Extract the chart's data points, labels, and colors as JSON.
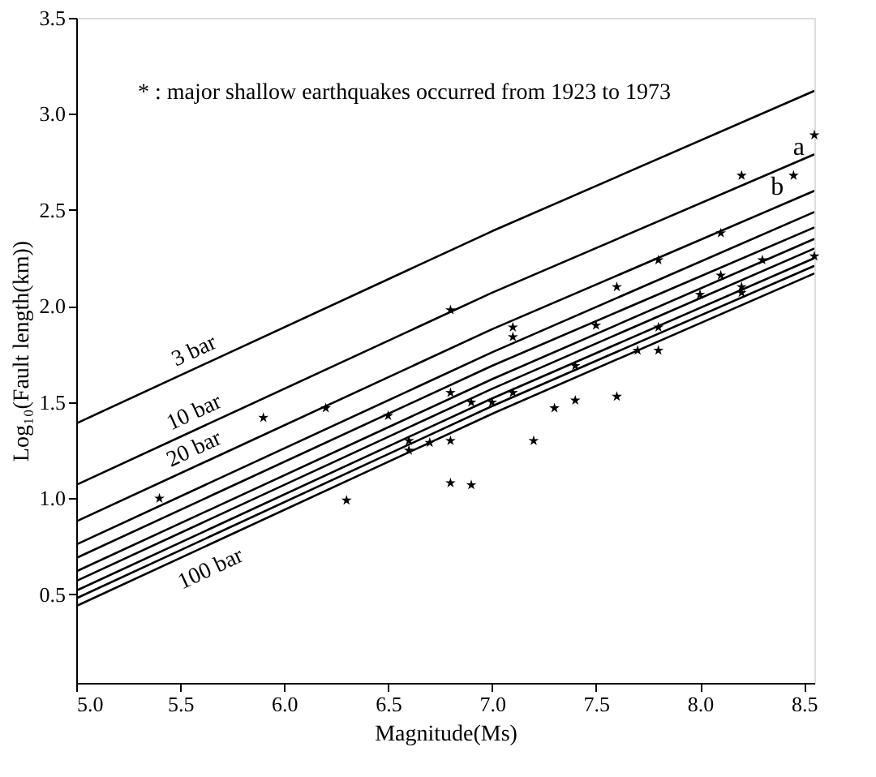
{
  "chart_data": {
    "type": "line",
    "xlabel": "Magnitude(Ms)",
    "ylabel": "Log₁₀(Fault length(km))",
    "xlim": [
      5.0,
      8.55
    ],
    "ylim": [
      0.04,
      3.5
    ],
    "xticks": [
      {
        "value": 5,
        "label": "5.0"
      },
      {
        "value": 5.5,
        "label": "5.5"
      },
      {
        "value": 6,
        "label": "6.0"
      },
      {
        "value": 6.5,
        "label": "6.5"
      },
      {
        "value": 7,
        "label": "7.0"
      },
      {
        "value": 7.5,
        "label": "7.5"
      },
      {
        "value": 8,
        "label": "8.0"
      },
      {
        "value": 8.5,
        "label": "8.5"
      }
    ],
    "yticks": [
      0.5,
      {
        "value": 1,
        "label": "1.0"
      },
      1.5,
      {
        "value": 2,
        "label": "2.0"
      },
      2.5,
      {
        "value": 3,
        "label": "3.0"
      },
      3.5
    ],
    "grid": false,
    "line_style": "solid",
    "annotations": [
      "* : major shallow earthquakes occurred from 1923 to 1973",
      {
        "text": "a",
        "x": 8.55,
        "y": 2.89
      },
      {
        "text": "b",
        "x": 8.45,
        "y": 2.68
      }
    ],
    "series": [
      {
        "name": "3 bar",
        "color": "#000000",
        "x": [
          5.0,
          7.0,
          8.55
        ],
        "values": [
          1.39,
          2.39,
          3.12
        ]
      },
      {
        "name": "10 bar",
        "color": "#000000",
        "x": [
          5.0,
          7.0,
          8.55
        ],
        "values": [
          1.07,
          2.07,
          2.79
        ]
      },
      {
        "name": "20 bar",
        "color": "#000000",
        "x": [
          5.0,
          7.0,
          8.55
        ],
        "values": [
          0.88,
          1.88,
          2.6
        ]
      },
      {
        "color": "#000000",
        "x": [
          5.0,
          7.0,
          8.55
        ],
        "values": [
          0.76,
          1.76,
          2.49
        ]
      },
      {
        "color": "#000000",
        "x": [
          5.0,
          7.0,
          8.55
        ],
        "values": [
          0.69,
          1.69,
          2.41
        ]
      },
      {
        "color": "#000000",
        "x": [
          5.0,
          7.0,
          8.55
        ],
        "values": [
          0.62,
          1.62,
          2.35
        ]
      },
      {
        "color": "#000000",
        "x": [
          5.0,
          7.0,
          8.55
        ],
        "values": [
          0.57,
          1.57,
          2.3
        ]
      },
      {
        "color": "#000000",
        "x": [
          5.0,
          7.0,
          8.55
        ],
        "values": [
          0.52,
          1.52,
          2.25
        ]
      },
      {
        "color": "#000000",
        "x": [
          5.0,
          7.0,
          8.55
        ],
        "values": [
          0.48,
          1.48,
          2.21
        ]
      },
      {
        "name": "100 bar",
        "color": "#000000",
        "x": [
          5.0,
          7.0,
          8.55
        ],
        "values": [
          0.44,
          1.44,
          2.17
        ]
      },
      {
        "type": "scatter",
        "marker": "star",
        "color": "#000000",
        "x": [
          5.4,
          5.9,
          6.2,
          6.3,
          6.5,
          6.6,
          6.6,
          6.7,
          6.8,
          6.8,
          6.8,
          6.8,
          6.9,
          6.9,
          7.0,
          7.1,
          7.1,
          7.1,
          7.2,
          7.3,
          7.4,
          7.4,
          7.5,
          7.6,
          7.6,
          7.7,
          7.8,
          7.8,
          7.8,
          8.0,
          8.1,
          8.1,
          8.2,
          8.2,
          8.2,
          8.3,
          8.45,
          8.55,
          8.55
        ],
        "values": [
          1.0,
          1.42,
          1.47,
          0.99,
          1.43,
          1.3,
          1.25,
          1.29,
          1.98,
          1.55,
          1.3,
          1.08,
          1.5,
          1.07,
          1.5,
          1.89,
          1.84,
          1.55,
          1.3,
          1.47,
          1.69,
          1.51,
          1.9,
          2.1,
          1.53,
          1.77,
          2.24,
          1.89,
          1.77,
          2.06,
          2.38,
          2.16,
          2.68,
          2.1,
          2.07,
          2.24,
          2.68,
          2.89,
          2.26
        ]
      }
    ]
  }
}
